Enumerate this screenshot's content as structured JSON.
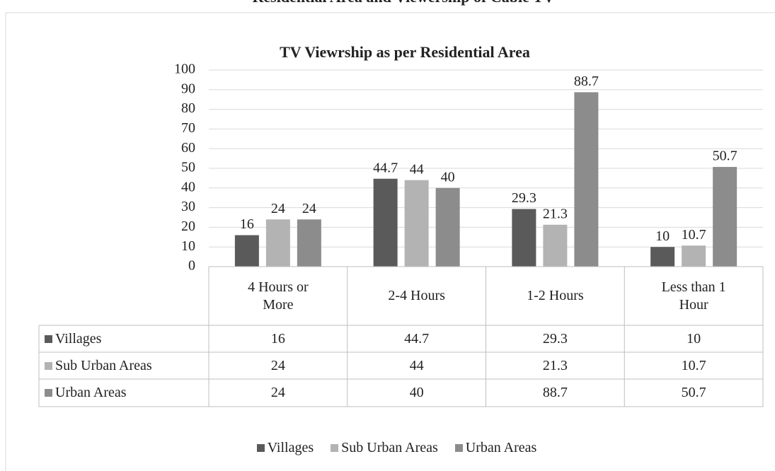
{
  "chart_data": {
    "type": "bar",
    "caption": "Residential Area and Viewership of Cable TV",
    "title": "TV Viewrship as per Residential Area",
    "categories": [
      "4 Hours or More",
      "2-4 Hours",
      "1-2 Hours",
      "Less than 1 Hour"
    ],
    "series": [
      {
        "name": "Villages",
        "color": "#5a5a5a",
        "values": [
          16,
          44.7,
          29.3,
          10
        ]
      },
      {
        "name": "Sub Urban Areas",
        "color": "#b3b3b3",
        "values": [
          24,
          44,
          21.3,
          10.7
        ]
      },
      {
        "name": "Urban Areas",
        "color": "#8c8c8c",
        "values": [
          24,
          40,
          88.7,
          50.7
        ]
      }
    ],
    "ylim": [
      0,
      100
    ],
    "yticks": [
      0,
      10,
      20,
      30,
      40,
      50,
      60,
      70,
      80,
      90,
      100
    ],
    "grid": true,
    "legend": "bottom"
  }
}
